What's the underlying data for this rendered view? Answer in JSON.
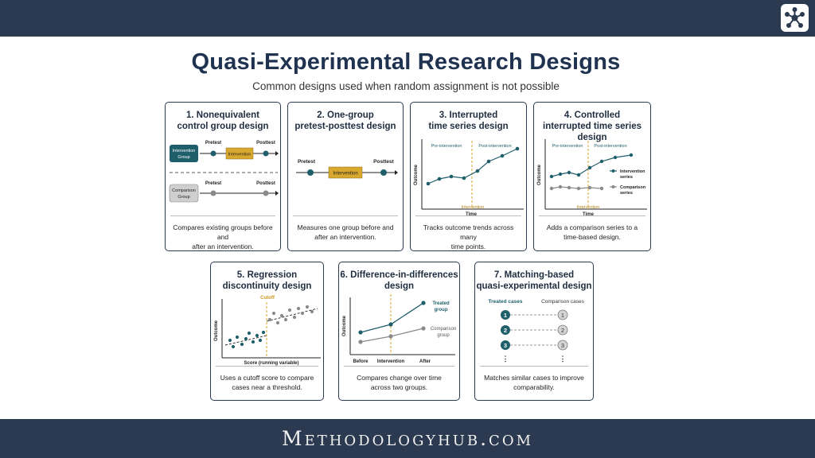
{
  "header": {
    "logo_icon": "network-icon"
  },
  "title": "Quasi-Experimental Research Designs",
  "subtitle": "Common designs used when random assignment is not possible",
  "footer": {
    "site": "Methodologyhub.com"
  },
  "colors": {
    "navy": "#2b3a50",
    "teal": "#1f5f6b",
    "gold": "#d9a92f",
    "gray": "#8a8a8a"
  },
  "cards": [
    {
      "title_1": "1. Nonequivalent",
      "title_2": "control group design",
      "desc_1": "Compares existing groups before and",
      "desc_2": "after an intervention.",
      "intervention_group": "Intervention",
      "intervention_group_2": "Group",
      "comparison_group": "Comparison",
      "comparison_group_2": "Group",
      "pretest": "Pretest",
      "posttest": "Posttest",
      "intervention": "Intervention"
    },
    {
      "title_1": "2. One-group",
      "title_2": "pretest-posttest design",
      "desc_1": "Measures one group before and",
      "desc_2": "after an intervention.",
      "pretest": "Pretest",
      "posttest": "Posttest",
      "intervention": "Intervention"
    },
    {
      "title_1": "3. Interrupted",
      "title_2": "time series design",
      "desc_1": "Tracks outcome trends across many",
      "desc_2": "time points.",
      "pre": "Pre-intervention",
      "post": "Post-intervention",
      "ylabel": "Outcome",
      "xlabel": "Time",
      "intervention": "Intervention"
    },
    {
      "title_1": "4. Controlled",
      "title_2": "interrupted time series design",
      "desc_1": "Adds a comparison series to a",
      "desc_2": "time-based design.",
      "pre": "Pre-intervention",
      "post": "Post-intervention",
      "ylabel": "Outcome",
      "xlabel": "Time",
      "intervention": "Intervention",
      "legend_1a": "Intervention",
      "legend_1b": "series",
      "legend_2a": "Comparison",
      "legend_2b": "series"
    },
    {
      "title_1": "5. Regression",
      "title_2": "discontinuity design",
      "desc_1": "Uses a cutoff score to compare",
      "desc_2": "cases near a threshold.",
      "cutoff": "Cutoff",
      "ylabel": "Outcome",
      "xlabel": "Score (running variable)"
    },
    {
      "title_1": "6. Difference-in-differences",
      "title_2": "design",
      "desc_1": "Compares change over time",
      "desc_2": "across two groups.",
      "ylabel": "Outcome",
      "x_before": "Before",
      "x_intervention": "Intervention",
      "x_after": "After",
      "treated_1": "Treated",
      "treated_2": "group",
      "comparison_1": "Comparison",
      "comparison_2": "group"
    },
    {
      "title_1": "7. Matching-based",
      "title_2": "quasi-experimental design",
      "desc_1": "Matches similar cases to improve",
      "desc_2": "comparability.",
      "treated_head": "Treated cases",
      "comparison_head": "Comparison cases",
      "n1": "1",
      "n2": "2",
      "n3": "3",
      "dots": "⋮"
    }
  ]
}
